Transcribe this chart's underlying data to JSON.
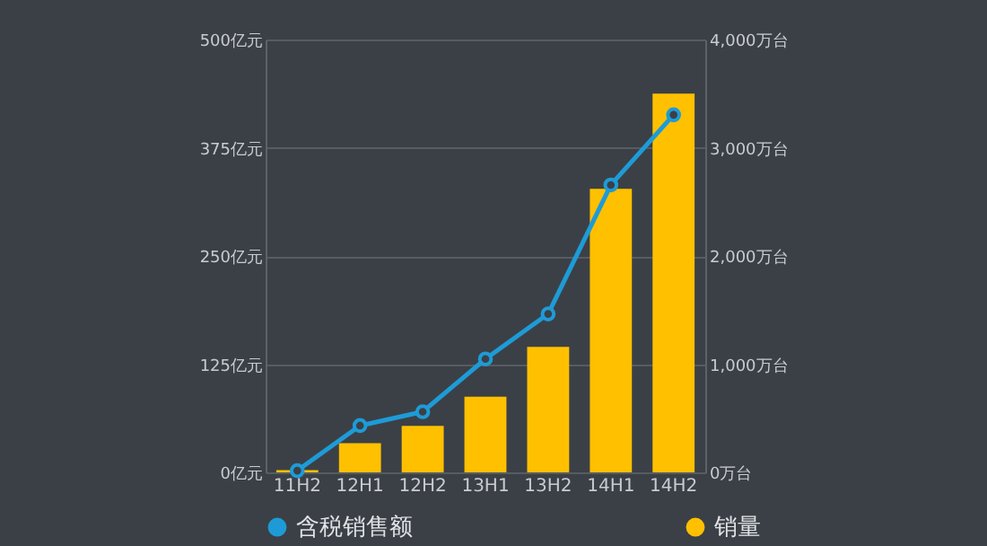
{
  "chart_data": {
    "type": "bar",
    "categories": [
      "11H2",
      "12H1",
      "12H2",
      "13H1",
      "13H2",
      "14H1",
      "14H2"
    ],
    "series": [
      {
        "name": "含税销售额",
        "type": "line",
        "axis": "y",
        "color": "#1e9bd7",
        "values": [
          2,
          54,
          70,
          131,
          183,
          332,
          413
        ]
      },
      {
        "name": "销量",
        "axis": "y2",
        "color": "#ffc000",
        "values": [
          20,
          270,
          430,
          700,
          1160,
          2620,
          3500
        ]
      }
    ],
    "ylim": [
      0,
      500
    ],
    "yticks": [
      {
        "value": 0,
        "label": "0亿元"
      },
      {
        "value": 125,
        "label": "125亿元"
      },
      {
        "value": 250,
        "label": "250亿元"
      },
      {
        "value": 375,
        "label": "375亿元"
      },
      {
        "value": 500,
        "label": "500亿元"
      }
    ],
    "y2lim": [
      0,
      4000
    ],
    "y2ticks": [
      {
        "value": 0,
        "label": "0万台"
      },
      {
        "value": 1000,
        "label": "1,000万台"
      },
      {
        "value": 2000,
        "label": "2,000万台"
      },
      {
        "value": 3000,
        "label": "3,000万台"
      },
      {
        "value": 4000,
        "label": "4,000万台"
      }
    ],
    "grid": "y",
    "legend": "bottom",
    "marker": "circle"
  }
}
